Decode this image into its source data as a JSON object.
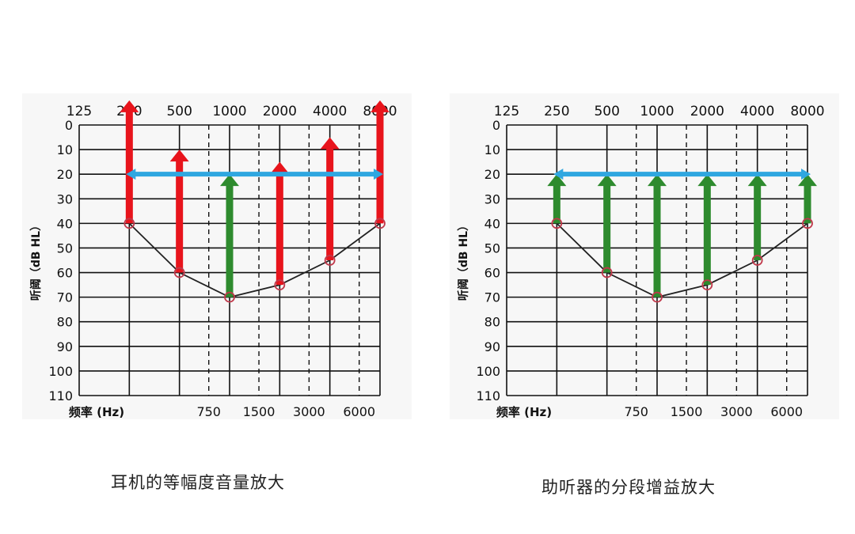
{
  "chart_data": [
    {
      "type": "line",
      "caption": "耳机的等幅度音量放大",
      "ylabel": "听阈（dB HL）",
      "xlabel": "频率 (Hz)",
      "ylim": [
        0,
        110
      ],
      "y_ticks": [
        0,
        10,
        20,
        30,
        40,
        50,
        60,
        70,
        80,
        90,
        100,
        110
      ],
      "x_top_ticks": [
        "125",
        "250",
        "500",
        "1000",
        "2000",
        "4000",
        "8000"
      ],
      "x_bottom_ticks": [
        "750",
        "1500",
        "3000",
        "6000"
      ],
      "x_scale": "log",
      "grid": true,
      "threshold": {
        "x": [
          250,
          500,
          1000,
          2000,
          4000,
          8000
        ],
        "y": [
          40,
          60,
          70,
          65,
          55,
          40
        ]
      },
      "target_level": 20,
      "amplification_arrows": [
        {
          "x": 250,
          "from": 40,
          "to": -10,
          "color": "#e8141c"
        },
        {
          "x": 500,
          "from": 60,
          "to": 10,
          "color": "#e8141c"
        },
        {
          "x": 1000,
          "from": 70,
          "to": 20,
          "color": "#2e8b2e"
        },
        {
          "x": 2000,
          "from": 65,
          "to": 15,
          "color": "#e8141c"
        },
        {
          "x": 4000,
          "from": 55,
          "to": 5,
          "color": "#e8141c"
        },
        {
          "x": 8000,
          "from": 40,
          "to": -10,
          "color": "#e8141c"
        }
      ]
    },
    {
      "type": "line",
      "caption": "助听器的分段增益放大",
      "ylabel": "听阈（dB HL）",
      "xlabel": "频率 (Hz)",
      "ylim": [
        0,
        110
      ],
      "y_ticks": [
        0,
        10,
        20,
        30,
        40,
        50,
        60,
        70,
        80,
        90,
        100,
        110
      ],
      "x_top_ticks": [
        "125",
        "250",
        "500",
        "1000",
        "2000",
        "4000",
        "8000"
      ],
      "x_bottom_ticks": [
        "750",
        "1500",
        "3000",
        "6000"
      ],
      "x_scale": "log",
      "grid": true,
      "threshold": {
        "x": [
          250,
          500,
          1000,
          2000,
          4000,
          8000
        ],
        "y": [
          40,
          60,
          70,
          65,
          55,
          40
        ]
      },
      "target_level": 20,
      "amplification_arrows": [
        {
          "x": 250,
          "from": 40,
          "to": 20,
          "color": "#2e8b2e"
        },
        {
          "x": 500,
          "from": 60,
          "to": 20,
          "color": "#2e8b2e"
        },
        {
          "x": 1000,
          "from": 70,
          "to": 20,
          "color": "#2e8b2e"
        },
        {
          "x": 2000,
          "from": 65,
          "to": 20,
          "color": "#2e8b2e"
        },
        {
          "x": 4000,
          "from": 55,
          "to": 20,
          "color": "#2e8b2e"
        },
        {
          "x": 8000,
          "from": 40,
          "to": 20,
          "color": "#2e8b2e"
        }
      ]
    }
  ],
  "colors": {
    "target_line": "#2fa7e0",
    "threshold_line": "#222222",
    "marker": "#c0394b",
    "grid": "#111111"
  }
}
